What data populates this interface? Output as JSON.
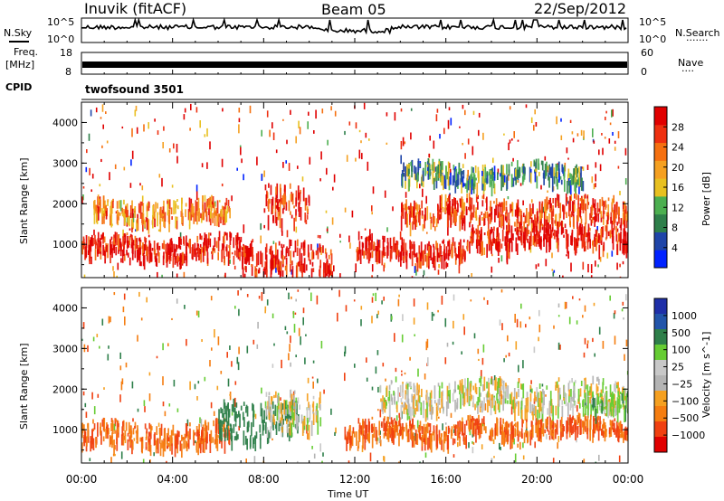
{
  "header": {
    "radar": "Inuvik (fitACF)",
    "beam": "Beam 05",
    "date": "22/Sep/2012"
  },
  "top_panels": {
    "nsky_label": "N.Sky",
    "nsky_ticks": [
      "10^5",
      "10^0"
    ],
    "nsearch_label": "N.Search",
    "nsearch_ticks": [
      "10^5",
      "10^0"
    ],
    "freq_label": "Freq.",
    "freq_unit": "[MHz]",
    "freq_ticks": [
      "18",
      "8"
    ],
    "nave_label": "Nave",
    "nave_ticks": [
      "60",
      "0"
    ],
    "cpid_label": "CPID",
    "cpid_value": "twofsound 3501"
  },
  "x_axis": {
    "label": "Time UT",
    "ticks": [
      "00:00",
      "04:00",
      "08:00",
      "12:00",
      "16:00",
      "20:00",
      "00:00"
    ]
  },
  "colors": {
    "power_scale": [
      "#0022ff",
      "#1f45a8",
      "#2e7f4a",
      "#4caf50",
      "#e8c020",
      "#f5a020",
      "#f57010",
      "#ee3010",
      "#e00000"
    ],
    "velocity_scale": [
      "#e00000",
      "#f04010",
      "#f57d10",
      "#f5a020",
      "#b4b4b4",
      "#c8c8c8",
      "#66cc33",
      "#2e7f4a",
      "#2255aa",
      "#1f2fa8"
    ],
    "ground_scatter": "#bdbdbd"
  },
  "chart_data": [
    {
      "type": "heatmap",
      "name": "power",
      "ylabel": "Slant Range [km]",
      "xlabel": "",
      "ylim": [
        180,
        4500
      ],
      "xlim_hours": [
        0,
        24
      ],
      "y_ticks": [
        1000,
        2000,
        3000,
        4000
      ],
      "colorbar_label": "Power [dB]",
      "colorbar_ticks": [
        4,
        8,
        12,
        16,
        20,
        24,
        28
      ],
      "bands": [
        {
          "t_start": 0,
          "t_end": 7.5,
          "range_center": 1000,
          "range_width": 500,
          "value": 28
        },
        {
          "t_start": 0.5,
          "t_end": 6.5,
          "range_center": 1900,
          "range_width": 500,
          "value": 20
        },
        {
          "t_start": 7,
          "t_end": 11,
          "range_center": 700,
          "range_width": 700,
          "value": 28
        },
        {
          "t_start": 8,
          "t_end": 10,
          "range_center": 2000,
          "range_width": 900,
          "value": 26
        },
        {
          "t_start": 12,
          "t_end": 17,
          "range_center": 950,
          "range_width": 450,
          "value": 28
        },
        {
          "t_start": 14,
          "t_end": 24,
          "range_center": 1900,
          "range_width": 600,
          "value": 24
        },
        {
          "t_start": 17,
          "t_end": 24,
          "range_center": 1300,
          "range_width": 500,
          "value": 28
        },
        {
          "t_start": 14,
          "t_end": 22,
          "range_center": 2800,
          "range_width": 500,
          "value": 10
        }
      ]
    },
    {
      "type": "heatmap",
      "name": "velocity",
      "ylabel": "Slant Range [km]",
      "xlabel": "Time UT",
      "ylim": [
        180,
        4500
      ],
      "xlim_hours": [
        0,
        24
      ],
      "y_ticks": [
        1000,
        2000,
        3000,
        4000
      ],
      "colorbar_label": "Velocity [m s^-1]",
      "colorbar_ticks": [
        "1000",
        "500",
        "100",
        "25",
        "−25",
        "−100",
        "−500",
        "−1000"
      ],
      "bands": [
        {
          "t_start": 0,
          "t_end": 6.5,
          "range_center": 950,
          "range_width": 550,
          "value": -300
        },
        {
          "t_start": 6,
          "t_end": 9.5,
          "range_center": 1300,
          "range_width": 900,
          "value": 250
        },
        {
          "t_start": 8,
          "t_end": 10.5,
          "range_center": 1500,
          "range_width": 900,
          "value": 0
        },
        {
          "t_start": 11.5,
          "t_end": 17,
          "range_center": 1050,
          "range_width": 450,
          "value": -300
        },
        {
          "t_start": 13,
          "t_end": 24,
          "range_center": 1900,
          "range_width": 700,
          "value": 0
        },
        {
          "t_start": 17,
          "t_end": 24,
          "range_center": 1150,
          "range_width": 400,
          "value": -300
        },
        {
          "t_start": 22,
          "t_end": 24,
          "range_center": 1800,
          "range_width": 500,
          "value": 60
        }
      ]
    }
  ]
}
